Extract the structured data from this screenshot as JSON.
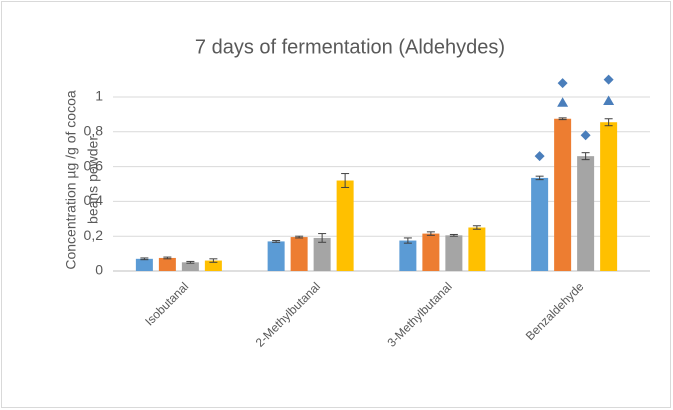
{
  "chart_data": {
    "type": "bar",
    "title": "7 days of fermentation (Aldehydes)",
    "y_label": [
      "Concentration µg /g of cocoa",
      "beans powder"
    ],
    "categories": [
      "Isobutanal",
      "2-Methylbutanal",
      "3-Methylbutanal",
      "Benzaldehyde"
    ],
    "series": [
      {
        "color": "#5b9bd5",
        "values": [
          0.07,
          0.17,
          0.175,
          0.535
        ],
        "errors": [
          0.005,
          0.005,
          0.015,
          0.01
        ],
        "diamonds": [
          null,
          null,
          null,
          0.66
        ],
        "triangles": [
          null,
          null,
          null,
          null
        ]
      },
      {
        "color": "#ed7d31",
        "values": [
          0.075,
          0.195,
          0.215,
          0.875
        ],
        "errors": [
          0.005,
          0.005,
          0.01,
          0.005
        ],
        "diamonds": [
          null,
          null,
          null,
          1.08
        ],
        "triangles": [
          null,
          null,
          null,
          0.97
        ]
      },
      {
        "color": "#a5a5a5",
        "values": [
          0.05,
          0.19,
          0.205,
          0.66
        ],
        "errors": [
          0.005,
          0.025,
          0.005,
          0.02
        ],
        "diamonds": [
          null,
          null,
          null,
          0.78
        ],
        "triangles": [
          null,
          null,
          null,
          null
        ]
      },
      {
        "color": "#ffc000",
        "values": [
          0.06,
          0.52,
          0.25,
          0.855
        ],
        "errors": [
          0.01,
          0.04,
          0.01,
          0.02
        ],
        "diamonds": [
          null,
          null,
          null,
          1.1
        ],
        "triangles": [
          null,
          null,
          null,
          0.98
        ]
      }
    ],
    "marker_color": "#4a7ebb",
    "ylim": [
      0,
      1
    ],
    "yticks": [
      0,
      {
        "value": 0.2,
        "label": "0,2"
      },
      {
        "value": 0.4,
        "label": "0,4"
      },
      {
        "value": 0.6,
        "label": "0,6"
      },
      {
        "value": 0.8,
        "label": "0,8"
      },
      1
    ],
    "grid": true
  }
}
